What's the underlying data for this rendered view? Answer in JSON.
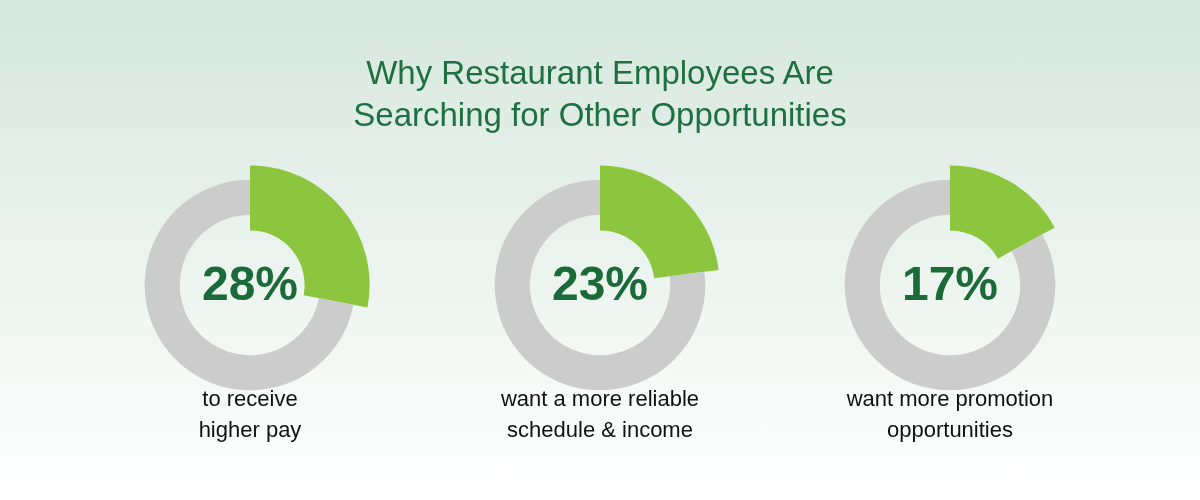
{
  "chart_data": [
    {
      "type": "other",
      "title": "Why Restaurant Employees Are\nSearching for Other Opportunities"
    },
    {
      "type": "donut",
      "xlabel": "to receive\nhigher pay",
      "categories": [
        null,
        null
      ],
      "values": [
        28,
        72
      ],
      "colors": [
        "#8cc63f",
        "#cccccc"
      ],
      "value_labels": [
        "28%",
        null
      ]
    },
    {
      "type": "donut",
      "xlabel": "want a more reliable\nschedule & income",
      "categories": [
        null,
        null
      ],
      "values": [
        23,
        77
      ],
      "colors": [
        "#8cc63f",
        "#cccccc"
      ],
      "value_labels": [
        "23%",
        null
      ]
    },
    {
      "type": "donut",
      "xlabel": "want more promotion\nopportunities",
      "categories": [
        null,
        null
      ],
      "values": [
        17,
        83
      ],
      "colors": [
        "#8cc63f",
        "#cccccc"
      ],
      "value_labels": [
        "17%",
        null
      ]
    }
  ]
}
